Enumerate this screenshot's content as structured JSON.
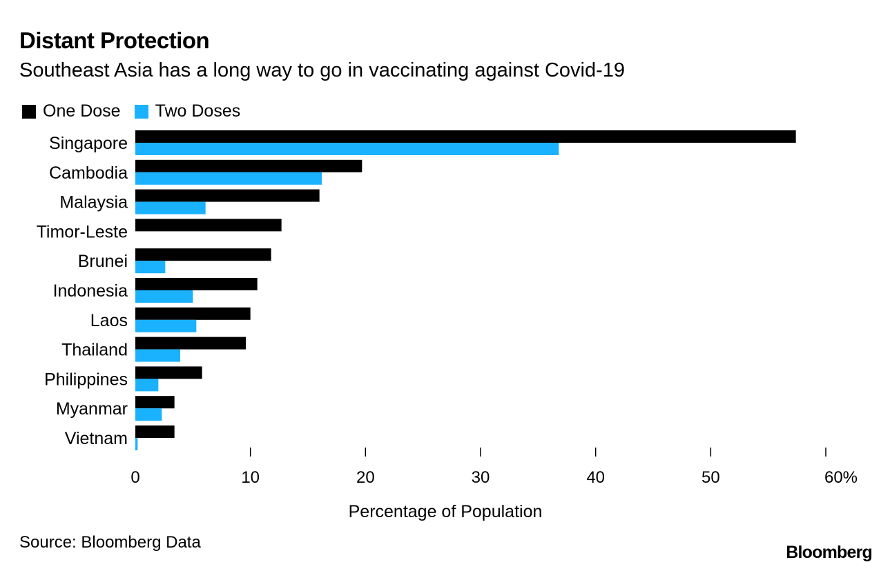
{
  "title": "Distant Protection",
  "subtitle": "Southeast Asia has a long way to go in vaccinating against Covid-19",
  "legend": [
    {
      "label": "One Dose",
      "color": "#000000"
    },
    {
      "label": "Two Doses",
      "color": "#1ab2ff"
    }
  ],
  "source": "Source: Bloomberg Data",
  "logo": "Bloomberg",
  "chart_data": {
    "type": "bar",
    "orientation": "horizontal",
    "title": "Distant Protection",
    "subtitle": "Southeast Asia has a long way to go in vaccinating against Covid-19",
    "xlabel": "Percentage of Population",
    "ylabel": "",
    "xlim": [
      0,
      60
    ],
    "ticks": [
      0,
      10,
      20,
      30,
      40,
      50,
      60
    ],
    "tick_labels": [
      "0",
      "10",
      "20",
      "30",
      "40",
      "50",
      "60%"
    ],
    "categories": [
      "Singapore",
      "Cambodia",
      "Malaysia",
      "Timor-Leste",
      "Brunei",
      "Indonesia",
      "Laos",
      "Thailand",
      "Philippines",
      "Myanmar",
      "Vietnam"
    ],
    "series": [
      {
        "name": "One Dose",
        "color": "#000000",
        "values": [
          57.4,
          19.7,
          16.0,
          12.7,
          11.8,
          10.6,
          10.0,
          9.6,
          5.8,
          3.4,
          3.4
        ]
      },
      {
        "name": "Two Doses",
        "color": "#1ab2ff",
        "values": [
          36.8,
          16.2,
          6.1,
          0,
          2.6,
          5.0,
          5.3,
          3.9,
          2.0,
          2.3,
          0.2
        ]
      }
    ],
    "grid": false,
    "legend_position": "top-left"
  }
}
